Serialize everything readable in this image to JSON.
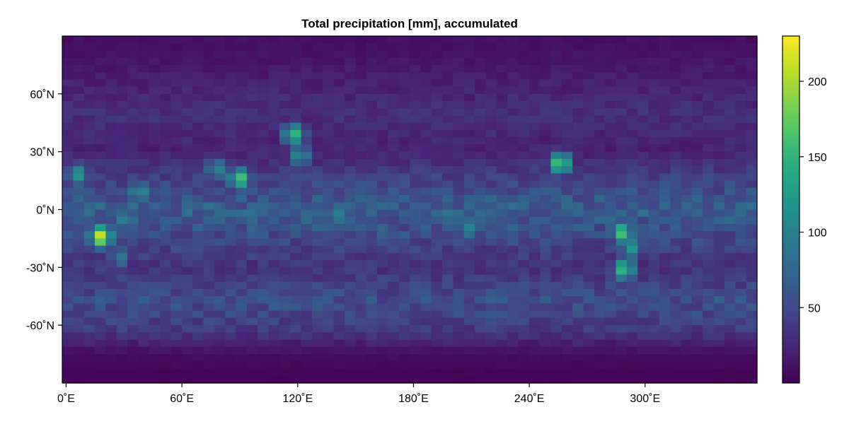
{
  "chart_data": {
    "type": "heatmap",
    "title": "Total precipitation [mm], accumulated",
    "xlabel": "",
    "ylabel": "",
    "x_range_deg_east": [
      0,
      360
    ],
    "y_range_deg_north": [
      -90,
      90
    ],
    "x_ticks": [
      {
        "value": 0,
        "label": "0˚E"
      },
      {
        "value": 60,
        "label": "60˚E"
      },
      {
        "value": 120,
        "label": "120˚E"
      },
      {
        "value": 180,
        "label": "180˚E"
      },
      {
        "value": 240,
        "label": "240˚E"
      },
      {
        "value": 300,
        "label": "300˚E"
      }
    ],
    "y_ticks": [
      {
        "value": 60,
        "label": "60˚N"
      },
      {
        "value": 30,
        "label": "30˚N"
      },
      {
        "value": 0,
        "label": "0˚N"
      },
      {
        "value": -30,
        "label": "-30˚N"
      },
      {
        "value": -60,
        "label": "-60˚N"
      }
    ],
    "colorbar": {
      "colormap": "viridis",
      "range": [
        0,
        230
      ],
      "ticks": [
        {
          "value": 50,
          "label": "50"
        },
        {
          "value": 100,
          "label": "100"
        },
        {
          "value": 150,
          "label": "150"
        },
        {
          "value": 200,
          "label": "200"
        }
      ]
    },
    "grid": false,
    "approx_field": {
      "background": [
        {
          "lat_min": -90,
          "lat_max": -80,
          "value": 2
        },
        {
          "lat_min": -80,
          "lat_max": -70,
          "value": 8
        },
        {
          "lat_min": -70,
          "lat_max": -55,
          "value": 38
        },
        {
          "lat_min": -55,
          "lat_max": -40,
          "value": 55
        },
        {
          "lat_min": -40,
          "lat_max": -20,
          "value": 32
        },
        {
          "lat_min": -20,
          "lat_max": 20,
          "value": 68
        },
        {
          "lat_min": 20,
          "lat_max": 40,
          "value": 22
        },
        {
          "lat_min": 40,
          "lat_max": 60,
          "value": 30
        },
        {
          "lat_min": 60,
          "lat_max": 80,
          "value": 18
        },
        {
          "lat_min": 80,
          "lat_max": 90,
          "value": 10
        }
      ],
      "hotspots": [
        {
          "lon": 20,
          "lat": -14,
          "value": 228
        },
        {
          "lon": 92,
          "lat": 16,
          "value": 175
        },
        {
          "lon": 120,
          "lat": 39,
          "value": 165
        },
        {
          "lon": 258,
          "lat": 24,
          "value": 185
        },
        {
          "lon": 290,
          "lat": -12,
          "value": 175
        },
        {
          "lon": 291,
          "lat": -31,
          "value": 170
        },
        {
          "lon": 8,
          "lat": 18,
          "value": 130
        },
        {
          "lon": 40,
          "lat": 9,
          "value": 120
        },
        {
          "lon": 33,
          "lat": -5,
          "value": 115
        },
        {
          "lon": 30,
          "lat": -25,
          "value": 100
        },
        {
          "lon": 210,
          "lat": -10,
          "value": 110
        },
        {
          "lon": 295,
          "lat": -20,
          "value": 130
        },
        {
          "lon": 142,
          "lat": -3,
          "value": 110
        },
        {
          "lon": 80,
          "lat": 21,
          "value": 115
        },
        {
          "lon": 123,
          "lat": 28,
          "value": 120
        }
      ]
    }
  }
}
